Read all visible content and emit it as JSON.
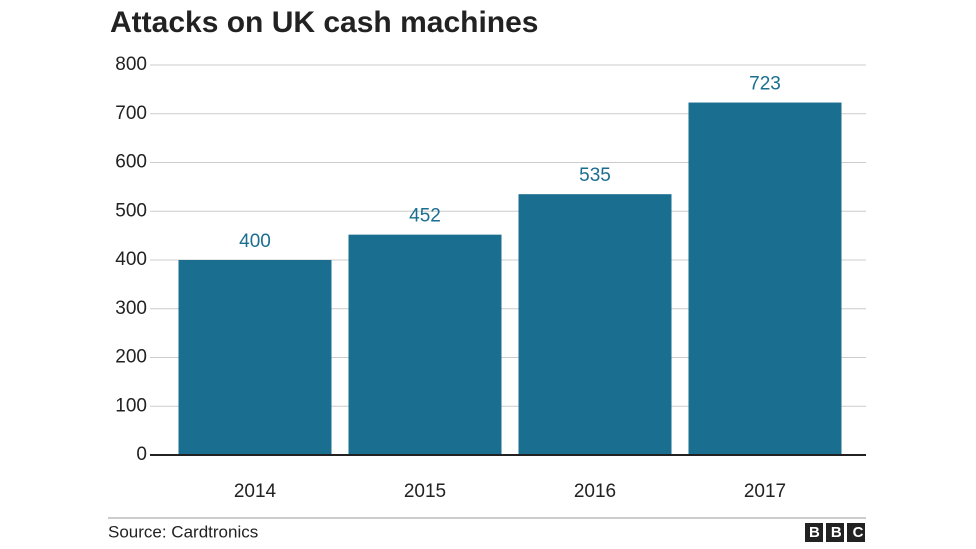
{
  "chart_data": {
    "type": "bar",
    "title": "Attacks on UK cash machines",
    "categories": [
      "2014",
      "2015",
      "2016",
      "2017"
    ],
    "values": [
      400,
      452,
      535,
      723
    ],
    "color": "#1a6e8f",
    "ylim": [
      0,
      800
    ],
    "yticks": [
      0,
      100,
      200,
      300,
      400,
      500,
      600,
      700,
      800
    ],
    "grid": true,
    "source": "Source: Cardtronics"
  },
  "logo": "BBC"
}
